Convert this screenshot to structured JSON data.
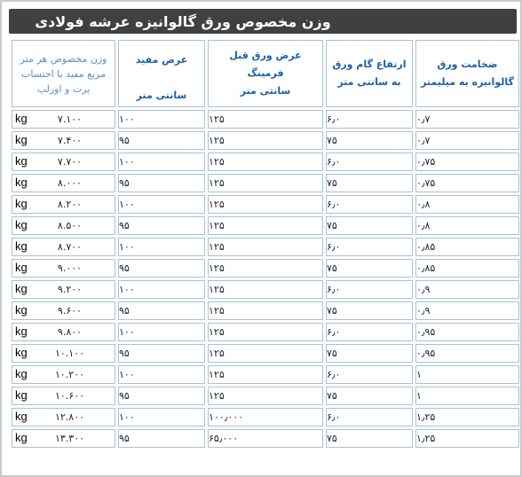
{
  "title": "وزن مخصوص ورق گالوانیزه عرشه فولادی",
  "headers": {
    "thickness": [
      "ضخامت ورق",
      "گالوانیزه به میلیمتر"
    ],
    "rib_height": [
      "ارتفاع گام ورق",
      "به سانتی متر"
    ],
    "sheet_width": [
      "عرض ورق قبل",
      "فرمینگ",
      "سانتی متر"
    ],
    "useful_width": [
      "عرض مفید",
      "سانتی متر"
    ],
    "weight": [
      "وزن مخصوص هر متر",
      "مربع مفید با احتساب",
      "پرت و اورلپ"
    ]
  },
  "unit_label": "kg",
  "rows": [
    {
      "thickness": "۰٫۷",
      "rib_height": "۶٫۰",
      "sheet_width": "۱۲۵",
      "useful_width": "۱۰۰",
      "weight": "۷.۱۰۰"
    },
    {
      "thickness": "۰٫۷",
      "rib_height": "۷۵",
      "sheet_width": "۱۲۵",
      "useful_width": "۹۵",
      "weight": "۷.۴۰۰"
    },
    {
      "thickness": "۰٫۷۵",
      "rib_height": "۶٫۰",
      "sheet_width": "۱۲۵",
      "useful_width": "۱۰۰",
      "weight": "۷.۷۰۰"
    },
    {
      "thickness": "۰٫۷۵",
      "rib_height": "۷۵",
      "sheet_width": "۱۲۵",
      "useful_width": "۹۵",
      "weight": "۸.۰۰۰"
    },
    {
      "thickness": "۰٫۸",
      "rib_height": "۶٫۰",
      "sheet_width": "۱۲۵",
      "useful_width": "۱۰۰",
      "weight": "۸.۲۰۰"
    },
    {
      "thickness": "۰٫۸",
      "rib_height": "۷۵",
      "sheet_width": "۱۲۵",
      "useful_width": "۹۵",
      "weight": "۸.۵۰۰"
    },
    {
      "thickness": "۰٫۸۵",
      "rib_height": "۶٫۰",
      "sheet_width": "۱۲۵",
      "useful_width": "۱۰۰",
      "weight": "۸.۷۰۰"
    },
    {
      "thickness": "۰٫۸۵",
      "rib_height": "۷۵",
      "sheet_width": "۱۲۵",
      "useful_width": "۹۵",
      "weight": "۹.۰۰۰"
    },
    {
      "thickness": "۰٫۹",
      "rib_height": "۶٫۰",
      "sheet_width": "۱۲۵",
      "useful_width": "۱۰۰",
      "weight": "۹.۲۰۰"
    },
    {
      "thickness": "۰٫۹",
      "rib_height": "۷۵",
      "sheet_width": "۱۲۵",
      "useful_width": "۹۵",
      "weight": "۹.۶۰۰"
    },
    {
      "thickness": "۰٫۹۵",
      "rib_height": "۶٫۰",
      "sheet_width": "۱۲۵",
      "useful_width": "۱۰۰",
      "weight": "۹.۸۰۰"
    },
    {
      "thickness": "۰٫۹۵",
      "rib_height": "۷۵",
      "sheet_width": "۱۲۵",
      "useful_width": "۹۵",
      "weight": "۱۰.۱۰۰"
    },
    {
      "thickness": "۱",
      "rib_height": "۶٫۰",
      "sheet_width": "۱۲۵",
      "useful_width": "۱۰۰",
      "weight": "۱۰.۲۰۰"
    },
    {
      "thickness": "۱",
      "rib_height": "۷۵",
      "sheet_width": "۱۲۵",
      "useful_width": "۹۵",
      "weight": "۱۰.۶۰۰"
    },
    {
      "thickness": "۱٫۲۵",
      "rib_height": "۶٫۰",
      "sheet_width": "۱۰۰٫۰۰۰",
      "useful_width": "۱۰۰",
      "weight": "۱۲.۸۰۰"
    },
    {
      "thickness": "۱٫۲۵",
      "rib_height": "۷۵",
      "sheet_width": "۶۵٫۰۰۰",
      "useful_width": "۹۵",
      "weight": "۱۳.۳۰۰"
    }
  ],
  "colors": {
    "title_bar": "#404040",
    "title_text": "#ffffff",
    "header_text": "#1f5ea8",
    "cell_border": "#a7c2d6"
  }
}
